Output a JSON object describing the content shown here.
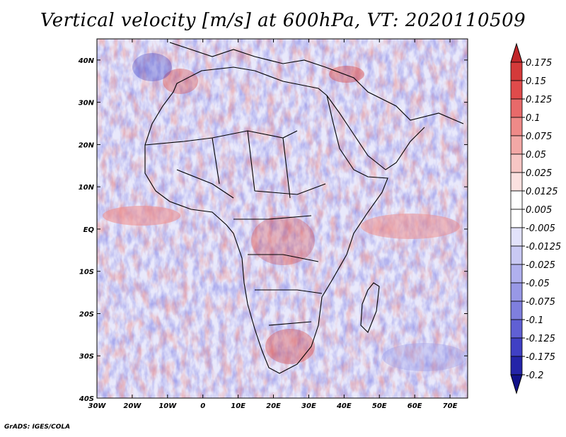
{
  "title": "Vertical velocity [m/s] at 600hPa, VT: 2020110509",
  "credit": "GrADS: IGES/COLA",
  "axes": {
    "lon_labels": [
      "30W",
      "20W",
      "10W",
      "0",
      "10E",
      "20E",
      "30E",
      "40E",
      "50E",
      "60E",
      "70E"
    ],
    "lat_labels": [
      "40N",
      "30N",
      "20N",
      "10N",
      "EQ",
      "10S",
      "20S",
      "30S",
      "40S"
    ],
    "lon_range": [
      -30,
      75
    ],
    "lat_range": [
      -40,
      45
    ]
  },
  "colorbar": {
    "levels": [
      "0.175",
      "0.15",
      "0.125",
      "0.1",
      "0.075",
      "0.05",
      "0.025",
      "0.0125",
      "0.005",
      "-0.005",
      "-0.0125",
      "-0.025",
      "-0.05",
      "-0.075",
      "-0.1",
      "-0.125",
      "-0.175",
      "-0.2"
    ],
    "colors": [
      "#c1262a",
      "#d43a3a",
      "#e04b4b",
      "#e86a6a",
      "#ee8a88",
      "#f3a8a6",
      "#f7c6c4",
      "#fbe1e0",
      "#ffffff",
      "#ffffff",
      "#e2e2fb",
      "#c9c9f4",
      "#b0b0ee",
      "#9898e6",
      "#7f7fde",
      "#6060d4",
      "#4040c4",
      "#2424a8",
      "#12128a"
    ]
  },
  "field_colors": {
    "up_strong": "#c1262a",
    "up": "#ee8a88",
    "up_weak": "#f7c6c4",
    "down_weak": "#c9c9f4",
    "down": "#9898e6",
    "down_strong": "#4040c4",
    "land_outline": "#000000"
  }
}
